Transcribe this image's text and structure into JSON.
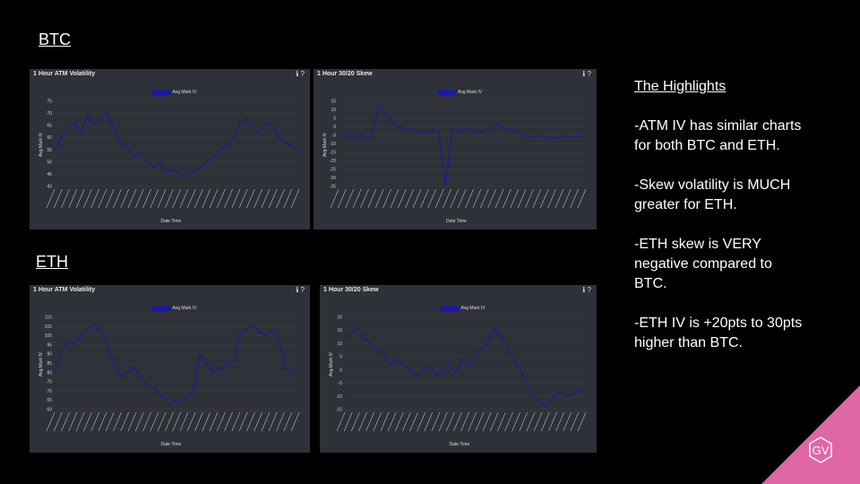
{
  "sections": {
    "btc_label": "BTC",
    "eth_label": "ETH"
  },
  "highlights": {
    "title": "The Highlights",
    "items": [
      "-ATM IV has similar charts for both BTC and ETH.",
      "-Skew volatility is MUCH greater for ETH.",
      "-ETH skew is VERY negative compared to BTC.",
      "-ETH IV is +20pts to 30pts higher than BTC."
    ]
  },
  "logo": {
    "text": "GV",
    "color": "#e066a6"
  },
  "colors": {
    "panel_bg": "#2f3138",
    "line": "#1a1aa0",
    "page_bg": "#000000"
  },
  "chart_data": [
    {
      "type": "line",
      "title": "1 Hour ATM Volatility",
      "legend": "Avg Mark IV",
      "xlabel": "Date Time",
      "ylabel": "Avg Mark IV",
      "ylim": [
        40,
        75
      ],
      "yticks": [
        "75",
        "70",
        "65",
        "60",
        "55",
        "50",
        "45",
        "40"
      ],
      "values": [
        55,
        60,
        64,
        66,
        62,
        70,
        65,
        68,
        70,
        63,
        58,
        56,
        52,
        54,
        50,
        48,
        50,
        46,
        47,
        45,
        44,
        46,
        48,
        50,
        52,
        55,
        57,
        60,
        66,
        68,
        64,
        62,
        66,
        65,
        60,
        58,
        56,
        54
      ]
    },
    {
      "type": "line",
      "title": "1 Hour 30/20 Skew",
      "legend": "Avg Mark IV",
      "xlabel": "Date Time",
      "ylabel": "Avg Mark IV",
      "ylim": [
        -35,
        15
      ],
      "yticks": [
        "15",
        "10",
        "5",
        "0",
        "-5",
        "-10",
        "-15",
        "-20",
        "-25",
        "-30",
        "-35"
      ],
      "values": [
        -5,
        -3,
        -6,
        -4,
        -7,
        -5,
        12,
        8,
        2,
        0,
        -1,
        -2,
        -3,
        -4,
        -2,
        -3,
        -35,
        -2,
        -3,
        -1,
        -2,
        -3,
        -2,
        0,
        1,
        -1,
        -2,
        -4,
        -5,
        -6,
        -5,
        -6,
        -7,
        -6,
        -5,
        -6,
        -6,
        -5
      ]
    },
    {
      "type": "line",
      "title": "1 Hour ATM Volatility",
      "legend": "Avg Mark IV",
      "xlabel": "Date Time",
      "ylabel": "Avg Mark IV",
      "ylim": [
        60,
        110
      ],
      "yticks": [
        "110",
        "105",
        "100",
        "95",
        "90",
        "85",
        "80",
        "75",
        "70",
        "65",
        "60"
      ],
      "values": [
        80,
        90,
        98,
        95,
        100,
        104,
        106,
        102,
        96,
        85,
        78,
        80,
        83,
        78,
        73,
        72,
        68,
        66,
        65,
        64,
        67,
        70,
        90,
        85,
        80,
        82,
        84,
        86,
        100,
        104,
        106,
        102,
        100,
        103,
        96,
        82,
        80,
        82
      ]
    },
    {
      "type": "line",
      "title": "1 Hour 30/20 Skew",
      "legend": "Avg Mark IV",
      "xlabel": "Date Time",
      "ylabel": "Avg Mark IV",
      "ylim": [
        -15,
        20
      ],
      "yticks": [
        "20",
        "15",
        "10",
        "5",
        "0",
        "-5",
        "-10",
        "-15"
      ],
      "values": [
        12,
        14,
        16,
        12,
        10,
        8,
        6,
        2,
        4,
        2,
        0,
        -2,
        0,
        2,
        -2,
        0,
        2,
        -1,
        4,
        2,
        6,
        8,
        10,
        16,
        12,
        8,
        4,
        0,
        -6,
        -10,
        -12,
        -14,
        -10,
        -8,
        -10,
        -9,
        -8,
        -7
      ]
    }
  ]
}
